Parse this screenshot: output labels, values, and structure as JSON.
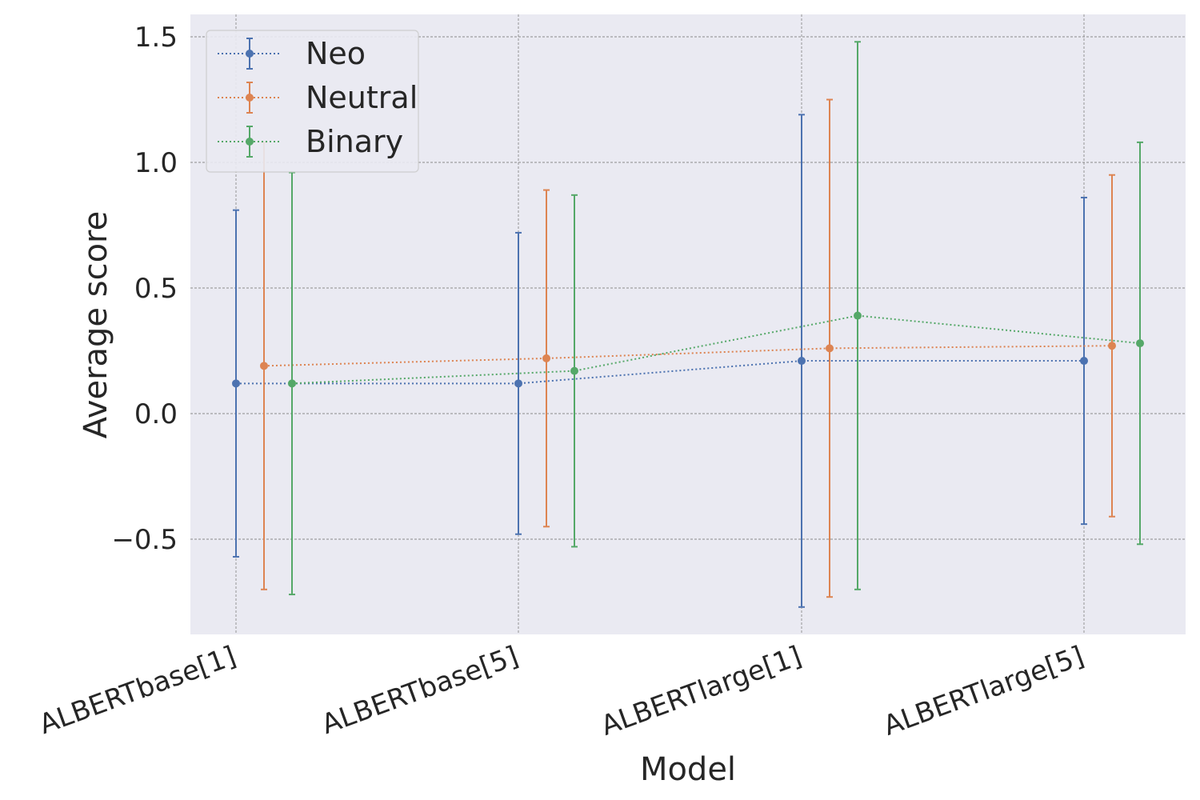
{
  "chart_data": {
    "type": "line",
    "xlabel": "Model",
    "ylabel": "Average score",
    "categories": [
      "ALBERTbase[1]",
      "ALBERTbase[5]",
      "ALBERTlarge[1]",
      "ALBERTlarge[5]"
    ],
    "ylim": [
      -0.88,
      1.6
    ],
    "yticks": [
      -0.5,
      0.0,
      0.5,
      1.0,
      1.5
    ],
    "ytick_labels": [
      "−0.5",
      "0.0",
      "0.5",
      "1.0",
      "1.5"
    ],
    "grid": true,
    "legend_position": "top-left",
    "background": "#eaeaf2",
    "series": [
      {
        "name": "Neo",
        "color": "#4c72b0",
        "values": [
          0.12,
          0.12,
          0.21,
          0.21
        ],
        "err_low": [
          -0.57,
          -0.48,
          -0.77,
          -0.44
        ],
        "err_high": [
          0.81,
          0.72,
          1.19,
          0.86
        ]
      },
      {
        "name": "Neutral",
        "color": "#dd8452",
        "values": [
          0.19,
          0.22,
          0.26,
          0.27
        ],
        "err_low": [
          -0.7,
          -0.45,
          -0.73,
          -0.41
        ],
        "err_high": [
          1.08,
          0.89,
          1.25,
          0.95
        ]
      },
      {
        "name": "Binary",
        "color": "#55a868",
        "values": [
          0.12,
          0.17,
          0.39,
          0.28
        ],
        "err_low": [
          -0.72,
          -0.53,
          -0.7,
          -0.52
        ],
        "err_high": [
          0.96,
          0.87,
          1.48,
          1.08
        ]
      }
    ]
  }
}
